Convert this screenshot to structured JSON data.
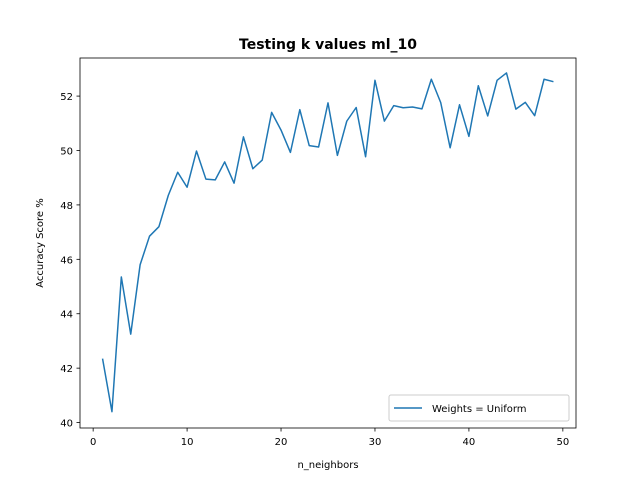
{
  "chart_data": {
    "type": "line",
    "title": "Testing k values ml_10",
    "xlabel": "n_neighbors",
    "ylabel": "Accuracy Score %",
    "xlim": [
      -1.4,
      51.4
    ],
    "ylim": [
      39.8,
      53.4
    ],
    "xticks": [
      0,
      10,
      20,
      30,
      40,
      50
    ],
    "yticks": [
      40,
      42,
      44,
      46,
      48,
      50,
      52
    ],
    "grid": false,
    "legend_position": "lower right",
    "series": [
      {
        "name": "Weights = Uniform",
        "color": "#1f77b4",
        "x": [
          1,
          2,
          3,
          4,
          5,
          6,
          7,
          8,
          9,
          10,
          11,
          12,
          13,
          14,
          15,
          16,
          17,
          18,
          19,
          20,
          21,
          22,
          23,
          24,
          25,
          26,
          27,
          28,
          29,
          30,
          31,
          32,
          33,
          34,
          35,
          36,
          37,
          38,
          39,
          40,
          41,
          42,
          43,
          44,
          45,
          46,
          47,
          48,
          49
        ],
        "y": [
          42.35,
          40.4,
          45.35,
          43.25,
          45.8,
          46.85,
          47.2,
          48.35,
          49.2,
          48.65,
          49.98,
          48.95,
          48.92,
          49.58,
          48.8,
          50.5,
          49.33,
          49.65,
          51.4,
          50.75,
          49.93,
          51.5,
          50.18,
          50.13,
          51.75,
          49.82,
          51.08,
          51.58,
          49.77,
          52.58,
          51.08,
          51.65,
          51.57,
          51.6,
          51.53,
          52.62,
          51.76,
          50.1,
          51.68,
          50.52,
          52.38,
          51.27,
          52.58,
          52.85,
          51.52,
          51.77,
          51.28,
          52.62,
          52.53
        ]
      }
    ]
  }
}
